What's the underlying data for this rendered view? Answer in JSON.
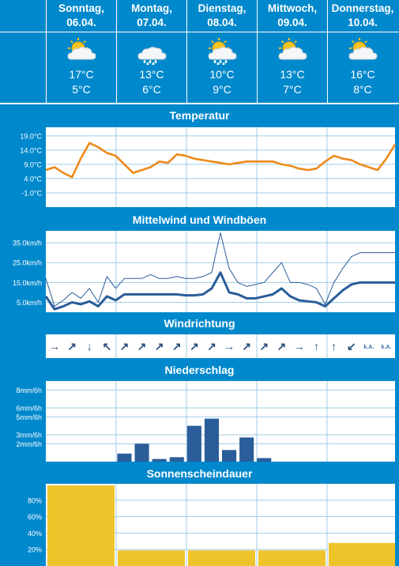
{
  "days": [
    {
      "name": "Sonntag,",
      "date": "06.04.",
      "max": "17°C",
      "min": "5°C",
      "icon": "sun-cloud-icon"
    },
    {
      "name": "Montag,",
      "date": "07.04.",
      "max": "13°C",
      "min": "6°C",
      "icon": "rain-cloud-icon"
    },
    {
      "name": "Dienstag,",
      "date": "08.04.",
      "max": "10°C",
      "min": "9°C",
      "icon": "sun-rain-cloud-icon"
    },
    {
      "name": "Mittwoch,",
      "date": "09.04.",
      "max": "13°C",
      "min": "7°C",
      "icon": "sun-cloud-icon"
    },
    {
      "name": "Donnerstag,",
      "date": "10.04.",
      "max": "16°C",
      "min": "8°C",
      "icon": "sun-cloud-icon"
    }
  ],
  "sections": {
    "temperature": "Temperatur",
    "wind": "Mittelwind und Windböen",
    "direction": "Windrichtung",
    "precip": "Niederschlag",
    "sunshine": "Sonnenscheindauer"
  },
  "chart_data": [
    {
      "type": "line",
      "name": "temperature",
      "yticks": [
        "19.0°C",
        "14.0°C",
        "9.0°C",
        "4.0°C",
        "-1.0°C"
      ],
      "ytick_values": [
        19,
        14,
        9,
        4,
        -1
      ],
      "ylim": [
        -6,
        22
      ],
      "x": [
        0,
        1,
        2,
        3,
        4,
        5,
        6,
        7,
        8,
        9,
        10,
        11,
        12,
        13,
        14,
        15,
        16,
        17,
        18,
        19,
        20,
        21,
        22,
        23,
        24,
        25,
        26,
        27,
        28,
        29,
        30,
        31,
        32,
        33,
        34,
        35,
        36,
        37,
        38,
        39,
        40
      ],
      "series": [
        {
          "values": [
            7,
            8,
            6,
            4.5,
            11,
            16.5,
            15,
            13,
            12,
            9,
            6,
            7,
            8,
            10,
            9.5,
            12.5,
            12,
            11,
            10.5,
            10,
            9.5,
            9,
            9.5,
            10,
            10,
            10,
            10,
            9,
            8.5,
            7.5,
            7,
            7.5,
            10,
            12,
            11,
            10.5,
            9,
            8,
            7,
            11,
            16
          ]
        }
      ]
    },
    {
      "type": "line",
      "name": "wind",
      "yticks": [
        "35.0km/h",
        "25.0km/h",
        "15.0km/h",
        "5.0km/h"
      ],
      "ytick_values": [
        35,
        25,
        15,
        5
      ],
      "ylim": [
        0,
        41
      ],
      "x": [
        0,
        1,
        2,
        3,
        4,
        5,
        6,
        7,
        8,
        9,
        10,
        11,
        12,
        13,
        14,
        15,
        16,
        17,
        18,
        19,
        20,
        21,
        22,
        23,
        24,
        25,
        26,
        27,
        28,
        29,
        30,
        31,
        32,
        33,
        34,
        35,
        36,
        37,
        38,
        39,
        40
      ],
      "series": [
        {
          "values": [
            8,
            1.5,
            3,
            5,
            4,
            5.5,
            3,
            8,
            6,
            9,
            9,
            9,
            9,
            9,
            9,
            9,
            8.5,
            8.5,
            9,
            12,
            20,
            10,
            9,
            7,
            7,
            8,
            9,
            12,
            8,
            6,
            5.5,
            5,
            3,
            7,
            11,
            14,
            15,
            15,
            15,
            15,
            15
          ]
        },
        {
          "values": [
            17,
            3,
            6,
            10,
            7,
            12,
            5,
            18,
            12,
            17,
            17,
            17,
            19,
            17,
            17,
            18,
            17,
            17,
            18,
            20,
            40,
            22,
            15,
            13,
            14,
            15,
            20,
            25,
            15,
            15,
            14,
            12,
            4,
            15,
            22,
            28,
            30,
            30,
            30,
            30,
            30
          ]
        }
      ]
    },
    {
      "type": "table",
      "name": "wind-direction",
      "arrows": [
        "→",
        "↗",
        "↓",
        "↖",
        "↗",
        "↗",
        "↗",
        "↗",
        "↗",
        "↗",
        "→",
        "↗",
        "↗",
        "↗",
        "→",
        "↑",
        "↑",
        "↙",
        "k.A.",
        "k.A."
      ]
    },
    {
      "type": "bar",
      "name": "precipitation",
      "yticks": [
        "8mm/6h",
        "6mm/6h",
        "5mm/6h",
        "3mm/6h",
        "2mm/6h"
      ],
      "ytick_values": [
        8,
        6,
        5,
        3,
        2
      ],
      "ylim": [
        0,
        9
      ],
      "values": [
        0,
        0,
        0,
        0,
        0.9,
        2,
        0.3,
        0.5,
        4,
        4.8,
        1.3,
        2.7,
        0.4,
        0,
        0,
        0,
        0,
        0,
        0,
        0
      ]
    },
    {
      "type": "bar",
      "name": "sunshine",
      "yticks": [
        "80%",
        "60%",
        "40%",
        "20%"
      ],
      "ytick_values": [
        80,
        60,
        40,
        20
      ],
      "ylim": [
        0,
        100
      ],
      "values": [
        98,
        19,
        19,
        19,
        28
      ]
    }
  ],
  "colors": {
    "header": "#0088cc",
    "temperature": "#ee8a1a",
    "wind": "#2a5d99",
    "precip": "#2a5d99",
    "sunshine": "#efc42b",
    "grid": "#9fcde6"
  }
}
